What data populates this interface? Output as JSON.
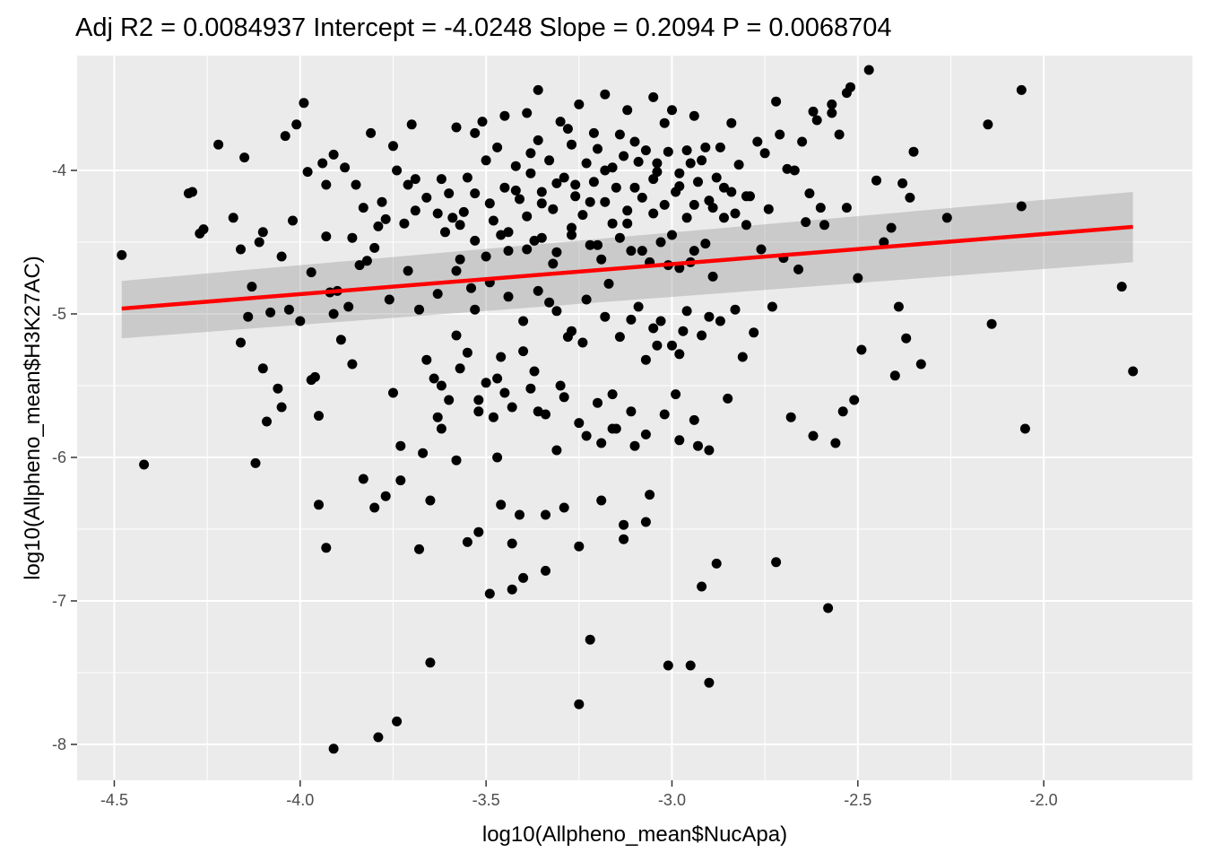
{
  "chart_data": {
    "type": "scatter",
    "title": "Adj R2 =  0.0084937 Intercept = -4.0248  Slope = 0.2094  P = 0.0068704",
    "xlabel": "log10(Allpheno_mean$NucApa)",
    "ylabel": "log10(Allpheno_mean$H3K27AC)",
    "xlim": [
      -4.6,
      -1.6
    ],
    "ylim": [
      -8.25,
      -3.2
    ],
    "x_ticks": [
      -4.5,
      -4.0,
      -3.5,
      -3.0,
      -2.5,
      -2.0
    ],
    "x_tick_labels": [
      "-4.5",
      "-4.0",
      "-3.5",
      "-3.0",
      "-2.5",
      "-2.0"
    ],
    "y_ticks": [
      -8,
      -7,
      -6,
      -5,
      -4
    ],
    "y_tick_labels": [
      "-8",
      "-7",
      "-6",
      "-5",
      "-4"
    ],
    "grid": true,
    "background_color": "#ebebeb",
    "grid_color": "#ffffff",
    "point_color": "#000000",
    "fit_line": {
      "intercept": -4.0248,
      "slope": 0.2094,
      "x_range": [
        -4.48,
        -1.76
      ],
      "color": "#ff0000",
      "ci_color": "#999999",
      "ci_low": [
        -5.17,
        -4.64
      ],
      "ci_high": [
        -4.77,
        -4.15
      ]
    },
    "points": [
      [
        -4.48,
        -4.59
      ],
      [
        -4.42,
        -6.05
      ],
      [
        -4.3,
        -4.16
      ],
      [
        -4.29,
        -4.15
      ],
      [
        -4.27,
        -4.44
      ],
      [
        -4.26,
        -4.41
      ],
      [
        -4.22,
        -3.82
      ],
      [
        -4.18,
        -4.33
      ],
      [
        -4.16,
        -4.55
      ],
      [
        -4.16,
        -5.2
      ],
      [
        -4.15,
        -3.91
      ],
      [
        -4.14,
        -5.02
      ],
      [
        -4.13,
        -4.81
      ],
      [
        -4.12,
        -6.04
      ],
      [
        -4.11,
        -4.5
      ],
      [
        -4.1,
        -4.43
      ],
      [
        -4.1,
        -5.38
      ],
      [
        -4.09,
        -5.75
      ],
      [
        -4.08,
        -4.99
      ],
      [
        -4.06,
        -5.52
      ],
      [
        -4.05,
        -4.6
      ],
      [
        -4.05,
        -5.65
      ],
      [
        -4.04,
        -3.76
      ],
      [
        -4.03,
        -4.97
      ],
      [
        -4.02,
        -4.35
      ],
      [
        -4.01,
        -3.68
      ],
      [
        -4.0,
        -5.05
      ],
      [
        -3.99,
        -3.53
      ],
      [
        -3.98,
        -4.01
      ],
      [
        -3.97,
        -5.46
      ],
      [
        -3.97,
        -4.71
      ],
      [
        -3.96,
        -5.44
      ],
      [
        -3.95,
        -6.33
      ],
      [
        -3.95,
        -5.71
      ],
      [
        -3.94,
        -3.95
      ],
      [
        -3.93,
        -4.1
      ],
      [
        -3.93,
        -6.63
      ],
      [
        -3.92,
        -4.85
      ],
      [
        -3.91,
        -3.89
      ],
      [
        -3.9,
        -4.84
      ],
      [
        -3.89,
        -5.18
      ],
      [
        -3.87,
        -4.95
      ],
      [
        -3.86,
        -4.47
      ],
      [
        -3.85,
        -4.1
      ],
      [
        -3.84,
        -4.66
      ],
      [
        -3.83,
        -4.26
      ],
      [
        -3.82,
        -4.63
      ],
      [
        -3.81,
        -3.74
      ],
      [
        -3.8,
        -4.54
      ],
      [
        -3.79,
        -4.39
      ],
      [
        -3.78,
        -4.22
      ],
      [
        -3.77,
        -4.34
      ],
      [
        -3.76,
        -4.9
      ],
      [
        -3.75,
        -5.55
      ],
      [
        -3.75,
        -3.83
      ],
      [
        -3.74,
        -4.0
      ],
      [
        -3.73,
        -5.92
      ],
      [
        -3.73,
        -6.16
      ],
      [
        -3.72,
        -4.37
      ],
      [
        -3.71,
        -4.1
      ],
      [
        -3.7,
        -3.68
      ],
      [
        -3.69,
        -4.28
      ],
      [
        -3.69,
        -4.06
      ],
      [
        -3.68,
        -4.97
      ],
      [
        -3.67,
        -5.97
      ],
      [
        -3.66,
        -4.19
      ],
      [
        -3.65,
        -6.3
      ],
      [
        -3.64,
        -5.45
      ],
      [
        -3.63,
        -5.72
      ],
      [
        -3.63,
        -4.3
      ],
      [
        -3.62,
        -4.06
      ],
      [
        -3.61,
        -4.43
      ],
      [
        -3.6,
        -5.6
      ],
      [
        -3.59,
        -4.33
      ],
      [
        -3.58,
        -3.7
      ],
      [
        -3.58,
        -5.15
      ],
      [
        -3.57,
        -4.62
      ],
      [
        -3.56,
        -4.29
      ],
      [
        -3.55,
        -5.27
      ],
      [
        -3.54,
        -4.82
      ],
      [
        -3.53,
        -4.16
      ],
      [
        -3.52,
        -5.68
      ],
      [
        -3.51,
        -3.66
      ],
      [
        -3.5,
        -5.48
      ],
      [
        -3.5,
        -4.6
      ],
      [
        -3.49,
        -4.23
      ],
      [
        -3.48,
        -5.72
      ],
      [
        -3.47,
        -6.0
      ],
      [
        -3.46,
        -6.33
      ],
      [
        -3.46,
        -4.45
      ],
      [
        -3.45,
        -5.55
      ],
      [
        -3.44,
        -4.56
      ],
      [
        -3.43,
        -6.92
      ],
      [
        -3.42,
        -4.14
      ],
      [
        -3.41,
        -6.4
      ],
      [
        -3.4,
        -5.26
      ],
      [
        -3.39,
        -4.32
      ],
      [
        -3.38,
        -3.88
      ],
      [
        -3.37,
        -4.49
      ],
      [
        -3.36,
        -5.68
      ],
      [
        -3.35,
        -4.23
      ],
      [
        -3.34,
        -6.4
      ],
      [
        -3.33,
        -4.92
      ],
      [
        -3.32,
        -4.65
      ],
      [
        -3.31,
        -4.09
      ],
      [
        -3.3,
        -5.5
      ],
      [
        -3.29,
        -6.35
      ],
      [
        -3.28,
        -3.71
      ],
      [
        -3.27,
        -4.45
      ],
      [
        -3.26,
        -4.1
      ],
      [
        -3.25,
        -6.62
      ],
      [
        -3.24,
        -5.2
      ],
      [
        -3.23,
        -5.85
      ],
      [
        -3.22,
        -4.22
      ],
      [
        -3.21,
        -3.74
      ],
      [
        -3.2,
        -4.52
      ],
      [
        -3.19,
        -5.9
      ],
      [
        -3.18,
        -4.0
      ],
      [
        -3.17,
        -4.79
      ],
      [
        -3.16,
        -4.37
      ],
      [
        -3.15,
        -5.8
      ],
      [
        -3.14,
        -3.75
      ],
      [
        -3.13,
        -6.57
      ],
      [
        -3.12,
        -4.37
      ],
      [
        -3.11,
        -5.04
      ],
      [
        -3.1,
        -4.12
      ],
      [
        -3.09,
        -3.94
      ],
      [
        -3.08,
        -4.56
      ],
      [
        -3.07,
        -5.32
      ],
      [
        -3.06,
        -6.26
      ],
      [
        -3.05,
        -4.3
      ],
      [
        -3.04,
        -4.01
      ],
      [
        -3.03,
        -5.05
      ],
      [
        -3.02,
        -3.67
      ],
      [
        -3.01,
        -4.66
      ],
      [
        -3.0,
        -4.45
      ],
      [
        -2.99,
        -5.56
      ],
      [
        -2.98,
        -4.11
      ],
      [
        -2.97,
        -5.12
      ],
      [
        -2.96,
        -3.86
      ],
      [
        -2.95,
        -4.64
      ],
      [
        -2.94,
        -4.24
      ],
      [
        -2.93,
        -5.92
      ],
      [
        -2.92,
        -3.93
      ],
      [
        -2.91,
        -4.51
      ],
      [
        -2.9,
        -5.02
      ],
      [
        -2.89,
        -4.26
      ],
      [
        -2.88,
        -6.74
      ],
      [
        -2.87,
        -3.84
      ],
      [
        -2.86,
        -4.33
      ],
      [
        -2.85,
        -5.59
      ],
      [
        -2.84,
        -4.15
      ],
      [
        -2.83,
        -4.97
      ],
      [
        -2.82,
        -3.96
      ],
      [
        -2.81,
        -5.3
      ],
      [
        -2.8,
        -4.38
      ],
      [
        -2.79,
        -4.18
      ],
      [
        -2.78,
        -5.13
      ],
      [
        -2.77,
        -3.8
      ],
      [
        -2.76,
        -4.55
      ],
      [
        -2.75,
        -3.88
      ],
      [
        -2.74,
        -4.27
      ],
      [
        -2.73,
        -4.95
      ],
      [
        -2.72,
        -6.73
      ],
      [
        -2.71,
        -3.75
      ],
      [
        -2.7,
        -4.61
      ],
      [
        -2.69,
        -3.99
      ],
      [
        -2.68,
        -5.72
      ],
      [
        -2.67,
        -4.0
      ],
      [
        -2.66,
        -4.69
      ],
      [
        -2.65,
        -3.8
      ],
      [
        -2.64,
        -4.36
      ],
      [
        -2.63,
        -4.16
      ],
      [
        -2.62,
        -5.85
      ],
      [
        -2.61,
        -3.65
      ],
      [
        -2.6,
        -4.26
      ],
      [
        -2.59,
        -4.38
      ],
      [
        -2.58,
        -7.05
      ],
      [
        -2.57,
        -3.6
      ],
      [
        -2.56,
        -5.9
      ],
      [
        -2.55,
        -3.75
      ],
      [
        -2.54,
        -5.68
      ],
      [
        -2.53,
        -4.26
      ],
      [
        -2.52,
        -3.42
      ],
      [
        -2.51,
        -5.6
      ],
      [
        -2.5,
        -4.75
      ],
      [
        -2.49,
        -5.25
      ],
      [
        -2.47,
        -3.3
      ],
      [
        -2.45,
        -4.07
      ],
      [
        -2.43,
        -4.5
      ],
      [
        -2.41,
        -4.4
      ],
      [
        -2.4,
        -5.43
      ],
      [
        -2.39,
        -4.95
      ],
      [
        -2.38,
        -4.09
      ],
      [
        -2.37,
        -5.17
      ],
      [
        -2.36,
        -4.19
      ],
      [
        -2.35,
        -3.87
      ],
      [
        -2.33,
        -5.35
      ],
      [
        -2.26,
        -4.33
      ],
      [
        -2.15,
        -3.68
      ],
      [
        -2.14,
        -5.07
      ],
      [
        -2.06,
        -3.44
      ],
      [
        -2.06,
        -4.25
      ],
      [
        -2.05,
        -5.8
      ],
      [
        -1.79,
        -4.81
      ],
      [
        -1.76,
        -5.4
      ],
      [
        -3.93,
        -4.46
      ],
      [
        -3.91,
        -5.0
      ],
      [
        -3.88,
        -3.98
      ],
      [
        -3.86,
        -5.35
      ],
      [
        -3.83,
        -6.15
      ],
      [
        -3.8,
        -6.35
      ],
      [
        -3.77,
        -6.27
      ],
      [
        -3.74,
        -7.84
      ],
      [
        -3.71,
        -4.7
      ],
      [
        -3.68,
        -6.64
      ],
      [
        -3.65,
        -7.43
      ],
      [
        -3.62,
        -5.8
      ],
      [
        -3.58,
        -6.02
      ],
      [
        -3.55,
        -6.59
      ],
      [
        -3.52,
        -6.52
      ],
      [
        -3.49,
        -6.95
      ],
      [
        -3.46,
        -5.3
      ],
      [
        -3.43,
        -6.6
      ],
      [
        -3.4,
        -6.84
      ],
      [
        -3.37,
        -5.4
      ],
      [
        -3.34,
        -6.79
      ],
      [
        -3.31,
        -5.95
      ],
      [
        -3.28,
        -5.16
      ],
      [
        -3.25,
        -7.72
      ],
      [
        -3.22,
        -7.27
      ],
      [
        -3.19,
        -6.3
      ],
      [
        -3.16,
        -5.56
      ],
      [
        -3.13,
        -6.47
      ],
      [
        -3.1,
        -5.92
      ],
      [
        -3.07,
        -6.45
      ],
      [
        -3.04,
        -5.22
      ],
      [
        -3.01,
        -7.45
      ],
      [
        -2.98,
        -5.28
      ],
      [
        -2.95,
        -7.45
      ],
      [
        -2.92,
        -6.9
      ],
      [
        -2.9,
        -7.57
      ],
      [
        -3.91,
        -8.03
      ],
      [
        -3.79,
        -7.95
      ],
      [
        -3.36,
        -3.44
      ],
      [
        -3.25,
        -3.54
      ],
      [
        -3.18,
        -3.47
      ],
      [
        -3.05,
        -3.49
      ],
      [
        -3.0,
        -3.58
      ],
      [
        -3.39,
        -3.6
      ],
      [
        -3.45,
        -3.62
      ],
      [
        -3.3,
        -3.66
      ],
      [
        -3.12,
        -3.58
      ],
      [
        -2.94,
        -3.62
      ],
      [
        -2.84,
        -3.67
      ],
      [
        -2.72,
        -3.52
      ],
      [
        -2.62,
        -3.59
      ],
      [
        -2.57,
        -3.54
      ],
      [
        -2.53,
        -3.46
      ],
      [
        -3.53,
        -3.74
      ],
      [
        -3.47,
        -3.84
      ],
      [
        -3.42,
        -3.97
      ],
      [
        -3.36,
        -3.79
      ],
      [
        -3.33,
        -3.93
      ],
      [
        -3.27,
        -3.82
      ],
      [
        -3.23,
        -3.95
      ],
      [
        -3.2,
        -3.85
      ],
      [
        -3.16,
        -3.98
      ],
      [
        -3.13,
        -3.9
      ],
      [
        -3.1,
        -3.8
      ],
      [
        -3.07,
        -3.86
      ],
      [
        -3.04,
        -3.95
      ],
      [
        -3.01,
        -3.87
      ],
      [
        -2.98,
        -4.02
      ],
      [
        -2.95,
        -3.95
      ],
      [
        -2.91,
        -3.84
      ],
      [
        -2.88,
        -4.05
      ],
      [
        -3.55,
        -4.05
      ],
      [
        -3.5,
        -3.93
      ],
      [
        -3.45,
        -4.12
      ],
      [
        -3.41,
        -4.2
      ],
      [
        -3.38,
        -4.02
      ],
      [
        -3.35,
        -4.15
      ],
      [
        -3.32,
        -4.27
      ],
      [
        -3.29,
        -4.05
      ],
      [
        -3.26,
        -4.18
      ],
      [
        -3.24,
        -4.31
      ],
      [
        -3.21,
        -4.08
      ],
      [
        -3.18,
        -4.22
      ],
      [
        -3.15,
        -4.12
      ],
      [
        -3.12,
        -4.28
      ],
      [
        -3.08,
        -4.19
      ],
      [
        -3.05,
        -4.06
      ],
      [
        -3.02,
        -4.24
      ],
      [
        -2.99,
        -4.15
      ],
      [
        -2.96,
        -4.33
      ],
      [
        -2.93,
        -4.08
      ],
      [
        -2.9,
        -4.21
      ],
      [
        -2.86,
        -4.12
      ],
      [
        -2.83,
        -4.3
      ],
      [
        -2.8,
        -4.18
      ],
      [
        -3.6,
        -4.16
      ],
      [
        -3.57,
        -4.38
      ],
      [
        -3.53,
        -4.49
      ],
      [
        -3.48,
        -4.35
      ],
      [
        -3.44,
        -4.43
      ],
      [
        -3.39,
        -4.55
      ],
      [
        -3.35,
        -4.47
      ],
      [
        -3.31,
        -4.57
      ],
      [
        -3.27,
        -4.4
      ],
      [
        -3.22,
        -4.52
      ],
      [
        -3.19,
        -4.62
      ],
      [
        -3.14,
        -4.47
      ],
      [
        -3.11,
        -4.56
      ],
      [
        -3.06,
        -4.64
      ],
      [
        -3.03,
        -4.5
      ],
      [
        -2.98,
        -4.68
      ],
      [
        -2.94,
        -4.56
      ],
      [
        -2.89,
        -4.74
      ],
      [
        -3.63,
        -4.86
      ],
      [
        -3.58,
        -4.7
      ],
      [
        -3.53,
        -4.97
      ],
      [
        -3.49,
        -4.78
      ],
      [
        -3.44,
        -4.88
      ],
      [
        -3.4,
        -5.05
      ],
      [
        -3.36,
        -4.84
      ],
      [
        -3.31,
        -4.98
      ],
      [
        -3.27,
        -5.12
      ],
      [
        -3.23,
        -4.9
      ],
      [
        -3.18,
        -5.02
      ],
      [
        -3.14,
        -5.16
      ],
      [
        -3.09,
        -4.95
      ],
      [
        -3.05,
        -5.1
      ],
      [
        -3.0,
        -5.22
      ],
      [
        -2.96,
        -4.98
      ],
      [
        -2.92,
        -5.15
      ],
      [
        -2.87,
        -5.05
      ],
      [
        -3.66,
        -5.32
      ],
      [
        -3.62,
        -5.5
      ],
      [
        -3.57,
        -5.38
      ],
      [
        -3.52,
        -5.6
      ],
      [
        -3.47,
        -5.45
      ],
      [
        -3.43,
        -5.65
      ],
      [
        -3.38,
        -5.52
      ],
      [
        -3.34,
        -5.7
      ],
      [
        -3.29,
        -5.58
      ],
      [
        -3.25,
        -5.76
      ],
      [
        -3.2,
        -5.62
      ],
      [
        -3.16,
        -5.8
      ],
      [
        -3.11,
        -5.68
      ],
      [
        -3.07,
        -5.84
      ],
      [
        -3.02,
        -5.7
      ],
      [
        -2.98,
        -5.88
      ],
      [
        -2.94,
        -5.74
      ],
      [
        -2.9,
        -5.95
      ]
    ]
  }
}
